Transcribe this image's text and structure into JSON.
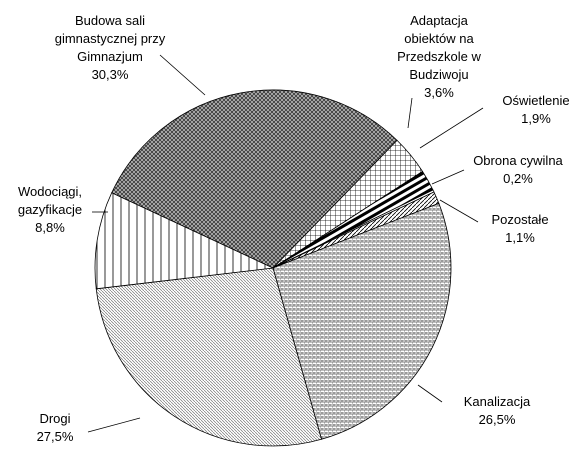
{
  "chart_data": {
    "type": "pie",
    "categories": [
      "Budowa sali gimnastycznej przy Gimnazjum",
      "Adaptacja obiektów na Przedszkole w Budziwoju",
      "Oświetlenie",
      "Obrona cywilna",
      "Pozostałe",
      "Kanalizacja",
      "Drogi",
      "Wodociągi, gazyfikacje"
    ],
    "values": [
      30.3,
      3.6,
      1.9,
      0.2,
      1.1,
      26.5,
      27.5,
      8.8
    ],
    "value_labels": [
      "30,3%",
      "3,6%",
      "1,9%",
      "0,2%",
      "1,1%",
      "26,5%",
      "27,5%",
      "8,8%"
    ]
  }
}
